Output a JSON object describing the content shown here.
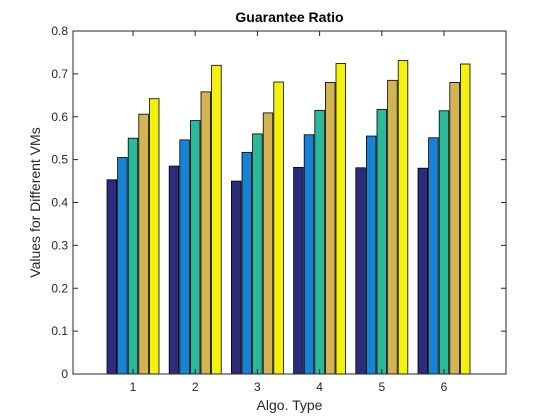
{
  "chart_data": {
    "type": "bar",
    "title": "Guarantee Ratio",
    "xlabel": "Algo. Type",
    "ylabel": "Values for Different VMs",
    "categories": [
      "1",
      "2",
      "3",
      "4",
      "5",
      "6"
    ],
    "ylim": [
      0,
      0.8
    ],
    "yticks": [
      "0",
      "0.1",
      "0.2",
      "0.3",
      "0.4",
      "0.5",
      "0.6",
      "0.7",
      "0.8"
    ],
    "grid": false,
    "legend": "none",
    "series": [
      {
        "color": "#2b2c7c",
        "values": [
          0.453,
          0.485,
          0.45,
          0.482,
          0.481,
          0.48
        ]
      },
      {
        "color": "#1a82d4",
        "values": [
          0.505,
          0.546,
          0.517,
          0.558,
          0.555,
          0.551
        ]
      },
      {
        "color": "#2cb89a",
        "values": [
          0.55,
          0.591,
          0.56,
          0.615,
          0.617,
          0.614
        ]
      },
      {
        "color": "#d4b452",
        "values": [
          0.606,
          0.658,
          0.609,
          0.68,
          0.685,
          0.68
        ]
      },
      {
        "color": "#f2f20e",
        "values": [
          0.642,
          0.72,
          0.681,
          0.724,
          0.731,
          0.723
        ]
      }
    ]
  }
}
